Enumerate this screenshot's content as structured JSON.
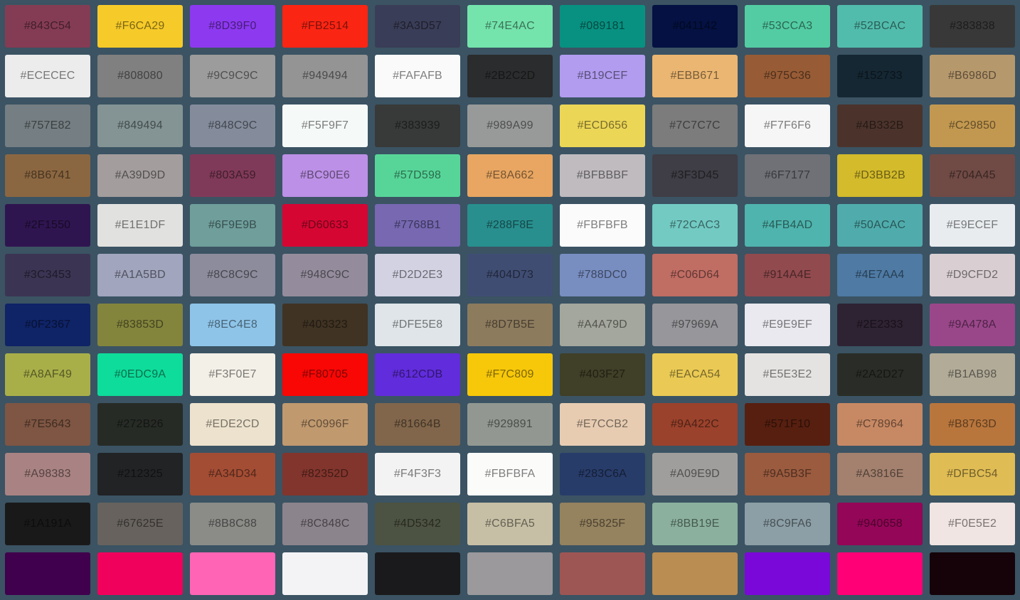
{
  "app": {
    "background_color": "#3B5363",
    "label_color": "rgba(0,0,0,0.5)"
  },
  "palette": {
    "columns": 11,
    "rows": [
      {
        "cells": [
          {
            "hex": "#843C54",
            "label": "#843C54"
          },
          {
            "hex": "#F6CA29",
            "label": "#F6CA29"
          },
          {
            "hex": "#8D39F0",
            "label": "#8D39F0"
          },
          {
            "hex": "#FB2514",
            "label": "#FB2514"
          },
          {
            "hex": "#3A3D57",
            "label": "#3A3D57"
          },
          {
            "hex": "#74E4AC",
            "label": "#74E4AC"
          },
          {
            "hex": "#089181",
            "label": "#089181"
          },
          {
            "hex": "#041142",
            "label": "#041142"
          },
          {
            "hex": "#53CCA3",
            "label": "#53CCA3"
          },
          {
            "hex": "#52BCAC",
            "label": "#52BCAC"
          },
          {
            "hex": "#383838",
            "label": "#383838"
          }
        ]
      },
      {
        "cells": [
          {
            "hex": "#ECECEC",
            "label": "#ECECEC"
          },
          {
            "hex": "#808080",
            "label": "#808080"
          },
          {
            "hex": "#9C9C9C",
            "label": "#9C9C9C"
          },
          {
            "hex": "#949494",
            "label": "#949494"
          },
          {
            "hex": "#FAFAFB",
            "label": "#FAFAFB"
          },
          {
            "hex": "#2B2C2D",
            "label": "#2B2C2D"
          },
          {
            "hex": "#B19CEF",
            "label": "#B19CEF"
          },
          {
            "hex": "#EBB671",
            "label": "#EBB671"
          },
          {
            "hex": "#975C36",
            "label": "#975C36"
          },
          {
            "hex": "#152733",
            "label": "#152733"
          },
          {
            "hex": "#B6986D",
            "label": "#B6986D"
          }
        ]
      },
      {
        "cells": [
          {
            "hex": "#757E82",
            "label": "#757E82"
          },
          {
            "hex": "#849494",
            "label": "#849494"
          },
          {
            "hex": "#848C9C",
            "label": "#848C9C"
          },
          {
            "hex": "#F5F9F7",
            "label": "#F5F9F7"
          },
          {
            "hex": "#383939",
            "label": "#383939"
          },
          {
            "hex": "#989A99",
            "label": "#989A99"
          },
          {
            "hex": "#ECD656",
            "label": "#ECD656"
          },
          {
            "hex": "#7C7C7C",
            "label": "#7C7C7C"
          },
          {
            "hex": "#F7F6F6",
            "label": "#F7F6F6"
          },
          {
            "hex": "#4B332B",
            "label": "#4B332B"
          },
          {
            "hex": "#C29850",
            "label": "#C29850"
          }
        ]
      },
      {
        "cells": [
          {
            "hex": "#8B6741",
            "label": "#8B6741"
          },
          {
            "hex": "#A39D9D",
            "label": "#A39D9D"
          },
          {
            "hex": "#803A59",
            "label": "#803A59"
          },
          {
            "hex": "#BC90E6",
            "label": "#BC90E6"
          },
          {
            "hex": "#57D598",
            "label": "#57D598"
          },
          {
            "hex": "#E8A662",
            "label": "#E8A662"
          },
          {
            "hex": "#BFBBBF",
            "label": "#BFBBBF"
          },
          {
            "hex": "#3F3D45",
            "label": "#3F3D45"
          },
          {
            "hex": "#6F7177",
            "label": "#6F7177"
          },
          {
            "hex": "#D3BB2B",
            "label": "#D3BB2B"
          },
          {
            "hex": "#704A45",
            "label": "#704A45"
          }
        ]
      },
      {
        "cells": [
          {
            "hex": "#2F1550",
            "label": "#2F1550"
          },
          {
            "hex": "#E1E1DF",
            "label": "#E1E1DF"
          },
          {
            "hex": "#6F9E9B",
            "label": "#6F9E9B"
          },
          {
            "hex": "#D60633",
            "label": "#D60633"
          },
          {
            "hex": "#7768B1",
            "label": "#7768B1"
          },
          {
            "hex": "#288F8E",
            "label": "#288F8E"
          },
          {
            "hex": "#FBFBFB",
            "label": "#FBFBFB"
          },
          {
            "hex": "#72CAC3",
            "label": "#72CAC3"
          },
          {
            "hex": "#4FB4AD",
            "label": "#4FB4AD"
          },
          {
            "hex": "#50ACAC",
            "label": "#50ACAC"
          },
          {
            "hex": "#E9ECEF",
            "label": "#E9ECEF"
          }
        ]
      },
      {
        "cells": [
          {
            "hex": "#3C3453",
            "label": "#3C3453"
          },
          {
            "hex": "#A1A5BD",
            "label": "#A1A5BD"
          },
          {
            "hex": "#8C8C9C",
            "label": "#8C8C9C"
          },
          {
            "hex": "#948C9C",
            "label": "#948C9C"
          },
          {
            "hex": "#D2D2E3",
            "label": "#D2D2E3"
          },
          {
            "hex": "#404D73",
            "label": "#404D73"
          },
          {
            "hex": "#788DC0",
            "label": "#788DC0"
          },
          {
            "hex": "#C06D64",
            "label": "#C06D64"
          },
          {
            "hex": "#914A4E",
            "label": "#914A4E"
          },
          {
            "hex": "#4E7AA4",
            "label": "#4E7AA4"
          },
          {
            "hex": "#D9CFD2",
            "label": "#D9CFD2"
          }
        ]
      },
      {
        "cells": [
          {
            "hex": "#0F2367",
            "label": "#0F2367"
          },
          {
            "hex": "#83853D",
            "label": "#83853D"
          },
          {
            "hex": "#8EC4E8",
            "label": "#8EC4E8"
          },
          {
            "hex": "#403323",
            "label": "#403323"
          },
          {
            "hex": "#DFE5E8",
            "label": "#DFE5E8"
          },
          {
            "hex": "#8D7B5E",
            "label": "#8D7B5E"
          },
          {
            "hex": "#A4A79D",
            "label": "#A4A79D"
          },
          {
            "hex": "#97969A",
            "label": "#97969A"
          },
          {
            "hex": "#E9E9EF",
            "label": "#E9E9EF"
          },
          {
            "hex": "#2E2333",
            "label": "#2E2333"
          },
          {
            "hex": "#9A478A",
            "label": "#9A478A"
          }
        ]
      },
      {
        "cells": [
          {
            "hex": "#A8AF49",
            "label": "#A8AF49"
          },
          {
            "hex": "#0EDC9A",
            "label": "#0EDC9A"
          },
          {
            "hex": "#F3F0E7",
            "label": "#F3F0E7"
          },
          {
            "hex": "#F80705",
            "label": "#F80705"
          },
          {
            "hex": "#612CDB",
            "label": "#612CDB"
          },
          {
            "hex": "#F7C809",
            "label": "#F7C809"
          },
          {
            "hex": "#403F27",
            "label": "#403F27"
          },
          {
            "hex": "#EACA54",
            "label": "#EACA54"
          },
          {
            "hex": "#E5E3E2",
            "label": "#E5E3E2"
          },
          {
            "hex": "#2A2D27",
            "label": "#2A2D27"
          },
          {
            "hex": "#B1AB98",
            "label": "#B1AB98"
          }
        ]
      },
      {
        "cells": [
          {
            "hex": "#7E5643",
            "label": "#7E5643"
          },
          {
            "hex": "#272B26",
            "label": "#272B26"
          },
          {
            "hex": "#EDE2CD",
            "label": "#EDE2CD"
          },
          {
            "hex": "#C0996F",
            "label": "#C0996F"
          },
          {
            "hex": "#81664B",
            "label": "#81664B"
          },
          {
            "hex": "#929891",
            "label": "#929891"
          },
          {
            "hex": "#E7CCB2",
            "label": "#E7CCB2"
          },
          {
            "hex": "#9A422C",
            "label": "#9A422C"
          },
          {
            "hex": "#571F10",
            "label": "#571F10"
          },
          {
            "hex": "#C78964",
            "label": "#C78964"
          },
          {
            "hex": "#B8763D",
            "label": "#B8763D"
          }
        ]
      },
      {
        "cells": [
          {
            "hex": "#A98383",
            "label": "#A98383"
          },
          {
            "hex": "#212325",
            "label": "#212325"
          },
          {
            "hex": "#A34D34",
            "label": "#A34D34"
          },
          {
            "hex": "#82352D",
            "label": "#82352D"
          },
          {
            "hex": "#F4F3F3",
            "label": "#F4F3F3"
          },
          {
            "hex": "#FBFBFA",
            "label": "#FBFBFA"
          },
          {
            "hex": "#283C6A",
            "label": "#283C6A"
          },
          {
            "hex": "#A09E9D",
            "label": "#A09E9D"
          },
          {
            "hex": "#9A5B3F",
            "label": "#9A5B3F"
          },
          {
            "hex": "#A3816E",
            "label": "#A3816E"
          },
          {
            "hex": "#DFBC54",
            "label": "#DFBC54"
          }
        ]
      },
      {
        "cells": [
          {
            "hex": "#1A191A",
            "label": "#1A191A"
          },
          {
            "hex": "#67625E",
            "label": "#67625E"
          },
          {
            "hex": "#8B8C88",
            "label": "#8B8C88"
          },
          {
            "hex": "#8C848C",
            "label": "#8C848C"
          },
          {
            "hex": "#4D5342",
            "label": "#4D5342"
          },
          {
            "hex": "#C6BFA5",
            "label": "#C6BFA5"
          },
          {
            "hex": "#95825F",
            "label": "#95825F"
          },
          {
            "hex": "#8BB19E",
            "label": "#8BB19E"
          },
          {
            "hex": "#8C9FA6",
            "label": "#8C9FA6"
          },
          {
            "hex": "#940658",
            "label": "#940658"
          },
          {
            "hex": "#F0E5E2",
            "label": "#F0E5E2"
          }
        ]
      },
      {
        "cells": [
          {
            "hex": "#40004D",
            "label": ""
          },
          {
            "hex": "#F0015C",
            "label": ""
          },
          {
            "hex": "#FF64B5",
            "label": ""
          },
          {
            "hex": "#F3F3F5",
            "label": ""
          },
          {
            "hex": "#1A1A1C",
            "label": ""
          },
          {
            "hex": "#9B999C",
            "label": ""
          },
          {
            "hex": "#9E5654",
            "label": ""
          },
          {
            "hex": "#BA8D52",
            "label": ""
          },
          {
            "hex": "#7A08D8",
            "label": ""
          },
          {
            "hex": "#FF0077",
            "label": ""
          },
          {
            "hex": "#150309",
            "label": ""
          }
        ]
      }
    ]
  }
}
